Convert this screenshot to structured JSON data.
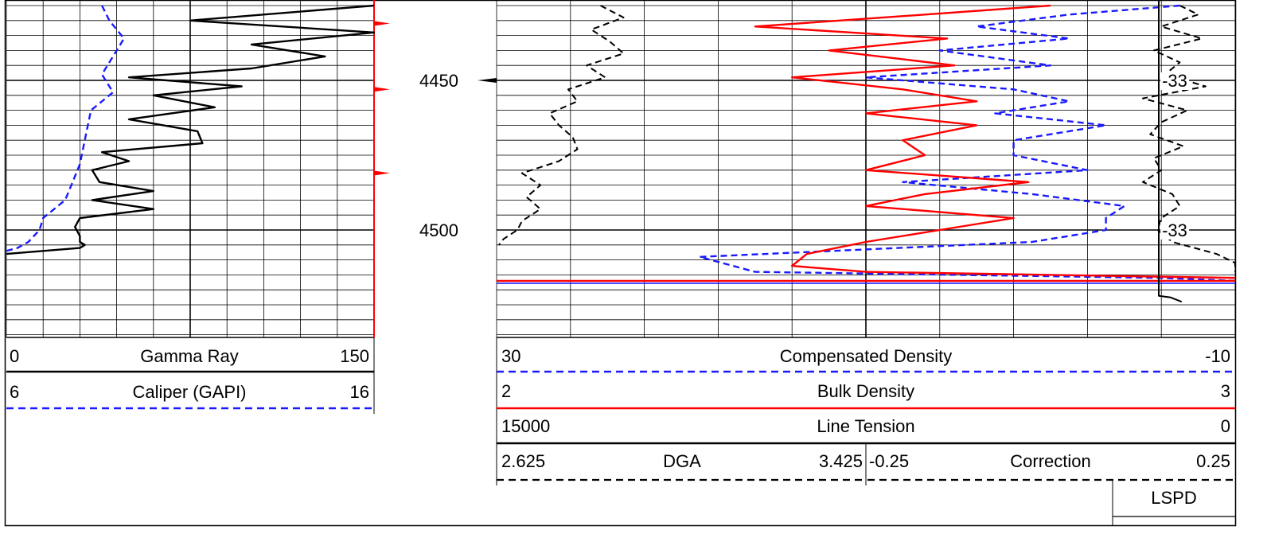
{
  "chart_data": {
    "type": "line",
    "title": "",
    "depth_axis": {
      "range": [
        4425,
        4535
      ],
      "labels": [
        "4450",
        "4500"
      ],
      "label_values": [
        4450,
        4500
      ]
    },
    "track1": {
      "series": [
        {
          "name": "Gamma Ray",
          "left": "0",
          "right": "150",
          "color": "#000000",
          "style": "solid",
          "depth": [
            4425,
            4430,
            4434,
            4438,
            4442,
            4446,
            4449,
            4452,
            4455,
            4459,
            4463,
            4467,
            4471,
            4474,
            4477,
            4480,
            4484,
            4487,
            4490,
            4493,
            4496,
            4499,
            4502,
            4504,
            4505,
            4506,
            4507,
            4508
          ],
          "values": [
            150,
            75,
            150,
            100,
            130,
            100,
            50,
            96,
            60,
            85,
            50,
            78,
            80,
            39,
            50,
            35,
            38,
            60,
            35,
            60,
            30,
            28,
            30,
            30,
            32,
            30,
            15,
            0
          ]
        },
        {
          "name": "Caliper (GAPI)",
          "left": "6",
          "right": "16",
          "color": "#1a1aff",
          "style": "dashed",
          "depth": [
            4425,
            4430,
            4436,
            4442,
            4448,
            4454,
            4460,
            4466,
            4472,
            4478,
            4484,
            4490,
            4496,
            4500,
            4504,
            4506,
            4507
          ],
          "values": [
            8.6,
            8.8,
            9.2,
            8.9,
            8.6,
            8.9,
            8.3,
            8.2,
            8.1,
            8.0,
            7.8,
            7.6,
            7.0,
            6.9,
            6.6,
            6.3,
            6.0
          ]
        }
      ]
    },
    "track3": {
      "series": [
        {
          "name": "Compensated Density",
          "left": "30",
          "right": "-10",
          "color": "#1a1aff",
          "style": "dashed",
          "depth": [
            4425,
            4428,
            4432,
            4436,
            4440,
            4445,
            4449,
            4453,
            4457,
            4461,
            4465,
            4470,
            4475,
            4480,
            4484,
            4488,
            4492,
            4496,
            4500,
            4504,
            4509,
            4514,
            4516,
            4517
          ],
          "values": [
            -7,
            -1,
            4,
            -1,
            6,
            0,
            10,
            2,
            -1,
            3,
            -3,
            2,
            2,
            -2,
            8,
            1,
            -4,
            -3,
            -3,
            1,
            19,
            16,
            -6,
            -10
          ]
        },
        {
          "name": "Bulk Density",
          "left": "2",
          "right": "3",
          "color": "#ff0000",
          "style": "solid",
          "depth": [
            4425,
            4428,
            4432,
            4436,
            4440,
            4445,
            4449,
            4453,
            4457,
            4461,
            4465,
            4470,
            4475,
            4480,
            4484,
            4488,
            4492,
            4496,
            4500,
            4504,
            4508,
            4512,
            4514,
            4515,
            4516
          ],
          "values": [
            2.75,
            2.58,
            2.35,
            2.61,
            2.45,
            2.62,
            2.4,
            2.55,
            2.65,
            2.5,
            2.65,
            2.55,
            2.58,
            2.5,
            2.72,
            2.58,
            2.5,
            2.7,
            2.6,
            2.5,
            2.42,
            2.4,
            2.5,
            2.75,
            3.0
          ]
        },
        {
          "name": "Line Tension",
          "left": "15000",
          "right": "0",
          "color": "#ff0000",
          "style": "solid",
          "depth": [
            4517,
            4517
          ],
          "values": [
            15000,
            0
          ]
        },
        {
          "name": "DGA",
          "left": "2.625",
          "right": "3.425",
          "color": "#000000",
          "style": "dashed",
          "depth": [
            4425,
            4429,
            4433,
            4437,
            4441,
            4445,
            4449,
            4453,
            4457,
            4461,
            4465,
            4469,
            4473,
            4477,
            4481,
            4485,
            4489,
            4493,
            4497,
            4500,
            4503,
            4505
          ],
          "values": [
            2.85,
            2.9,
            2.83,
            2.87,
            2.9,
            2.82,
            2.86,
            2.78,
            2.8,
            2.74,
            2.76,
            2.79,
            2.8,
            2.76,
            2.68,
            2.72,
            2.69,
            2.72,
            2.68,
            2.67,
            2.64,
            2.63
          ]
        },
        {
          "name": "Correction",
          "left": "-0.25",
          "right": "0.25",
          "color": "#000000",
          "style": "dashed",
          "depth": [
            4425,
            4428,
            4432,
            4436,
            4440,
            4444,
            4448,
            4452,
            4456,
            4460,
            4464,
            4468,
            4472,
            4476,
            4480,
            4484,
            4488,
            4492,
            4496,
            4500,
            4504,
            4508,
            4511,
            4514
          ],
          "values": [
            0.1,
            0.15,
            0.05,
            0.16,
            0.03,
            0.1,
            0.06,
            0.17,
            0.0,
            0.12,
            0.05,
            0.02,
            0.11,
            0.03,
            0.05,
            0.0,
            0.08,
            0.1,
            0.05,
            0.04,
            0.08,
            0.2,
            0.25,
            0.25
          ]
        },
        {
          "name": "LSPD",
          "left": "",
          "right": "",
          "color": "#000000",
          "style": "solid",
          "depth": [
            4425,
            4500,
            4522,
            4522.5,
            4524
          ],
          "values": [
            0,
            0,
            0,
            0.15,
            0.3
          ]
        }
      ]
    },
    "annotations": [
      {
        "text": "-33",
        "depth": 4450
      },
      {
        "text": "-33",
        "depth": 4500
      }
    ],
    "grid": true,
    "legend_placement": "bottom"
  }
}
